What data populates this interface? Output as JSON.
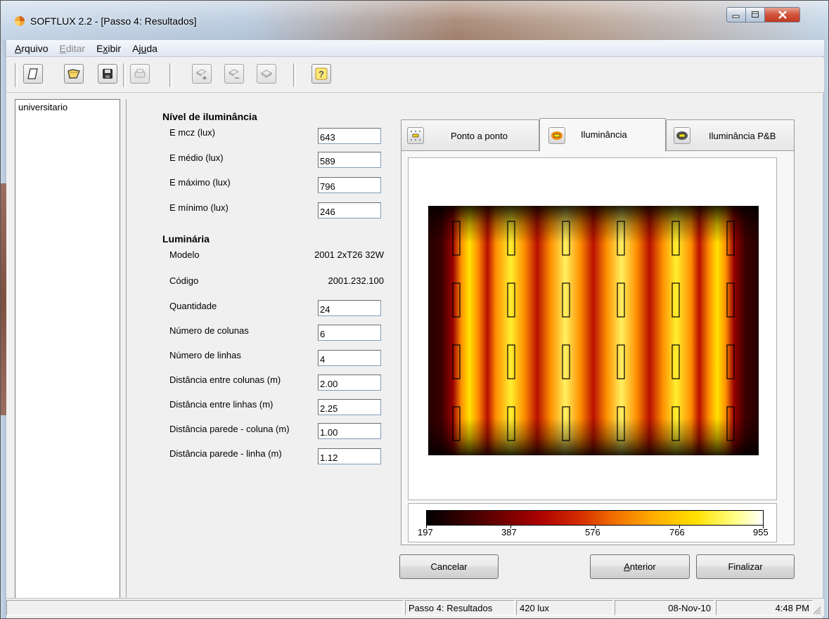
{
  "window": {
    "title": "SOFTLUX 2.2 - [Passo 4: Resultados]"
  },
  "menu": [
    {
      "label": "Arquivo",
      "enabled": true
    },
    {
      "label": "Editar",
      "enabled": false
    },
    {
      "label": "Exibir",
      "enabled": true
    },
    {
      "label": "Ajuda",
      "enabled": true
    }
  ],
  "toolbar": {
    "icons": [
      "new-icon",
      "open-icon",
      "save-icon",
      "print-icon",
      "add-luminaire-icon",
      "remove-luminaire-icon",
      "luminaire-icon",
      "help-icon"
    ],
    "help_glyph": "?"
  },
  "tree": {
    "items": [
      "universitario"
    ]
  },
  "illuminance": {
    "title": "Nível de iluminância",
    "fields": [
      {
        "label": "E mcz (lux)",
        "value": "643"
      },
      {
        "label": "E médio (lux)",
        "value": "589"
      },
      {
        "label": "E máximo (lux)",
        "value": "796"
      },
      {
        "label": "E mínimo (lux)",
        "value": "246"
      }
    ]
  },
  "luminaire": {
    "title": "Luminária",
    "model_label": "Modelo",
    "model_value": "2001 2xT26 32W",
    "code_label": "Código",
    "code_value": "2001.232.100",
    "fields": [
      {
        "label": "Quantidade",
        "value": "24"
      },
      {
        "label": "Número de colunas",
        "value": "6"
      },
      {
        "label": "Número de linhas",
        "value": "4"
      },
      {
        "label": "Distância entre colunas (m)",
        "value": "2.00"
      },
      {
        "label": "Distância entre linhas (m)",
        "value": "2.25"
      },
      {
        "label": "Distância parede - coluna (m)",
        "value": "1.00"
      },
      {
        "label": "Distância parede - linha (m)",
        "value": "1.12"
      }
    ]
  },
  "tabs": [
    {
      "label": "Ponto a ponto",
      "active": false
    },
    {
      "label": "Iluminância",
      "active": true
    },
    {
      "label": "Iluminância P&B",
      "active": false
    }
  ],
  "scale": {
    "ticks": [
      "197",
      "387",
      "576",
      "766",
      "955"
    ],
    "colors": [
      "#000000",
      "#a80000",
      "#f06a00",
      "#ffe000",
      "#ffffff"
    ]
  },
  "buttons": {
    "cancel": "Cancelar",
    "previous": "Anterior",
    "finish": "Finalizar"
  },
  "status": {
    "step": "Passo 4: Resultados",
    "lux": "420 lux",
    "empty": "",
    "date": "08-Nov-10",
    "time": "4:48 PM"
  }
}
